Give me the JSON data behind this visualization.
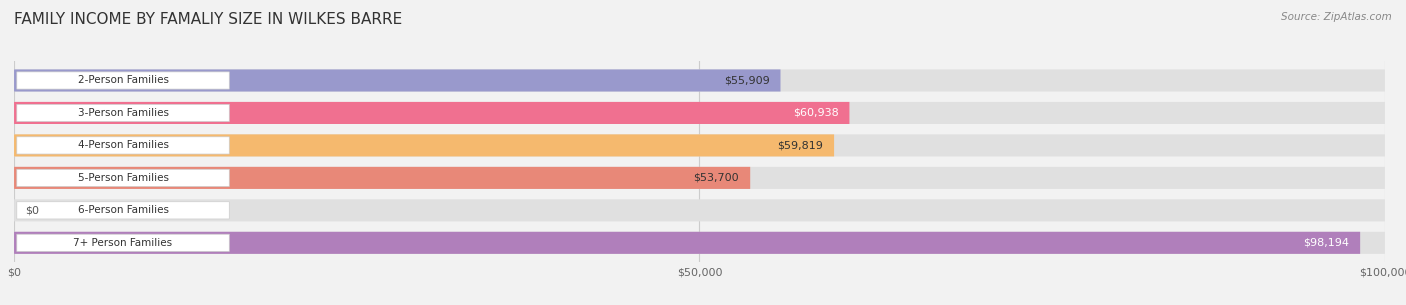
{
  "title": "FAMILY INCOME BY FAMALIY SIZE IN WILKES BARRE",
  "source": "Source: ZipAtlas.com",
  "categories": [
    "2-Person Families",
    "3-Person Families",
    "4-Person Families",
    "5-Person Families",
    "6-Person Families",
    "7+ Person Families"
  ],
  "values": [
    55909,
    60938,
    59819,
    53700,
    0,
    98194
  ],
  "bar_colors": [
    "#9999cc",
    "#f07090",
    "#f5b96e",
    "#e88878",
    "#aacce8",
    "#b07fbb"
  ],
  "bar_label_colors": [
    "#333333",
    "#ffffff",
    "#333333",
    "#333333",
    "#333333",
    "#ffffff"
  ],
  "max_value": 100000,
  "xticks": [
    0,
    50000,
    100000
  ],
  "xtick_labels": [
    "$0",
    "$50,000",
    "$100,000"
  ],
  "background_color": "#f2f2f2",
  "bar_bg_color": "#e0e0e0",
  "title_fontsize": 11,
  "label_fontsize": 9,
  "value_labels": [
    "$55,909",
    "$60,938",
    "$59,819",
    "$53,700",
    "$0",
    "$98,194"
  ]
}
